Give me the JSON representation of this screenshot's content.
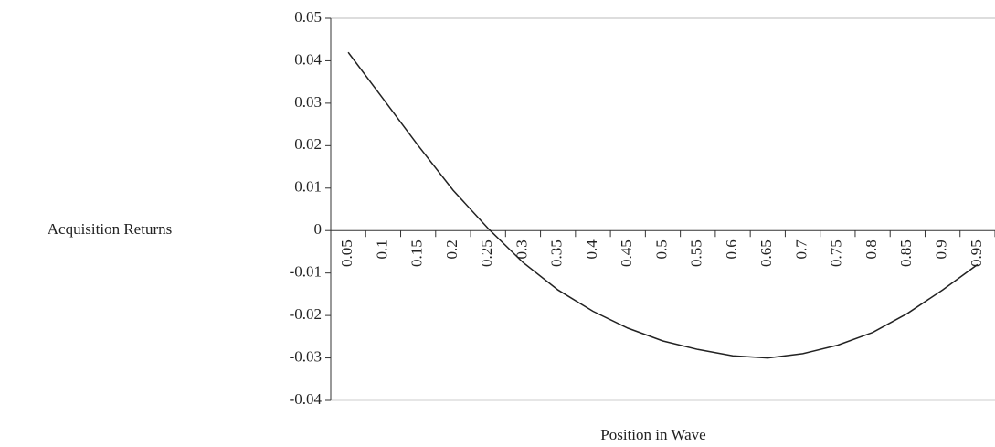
{
  "chart_data": {
    "type": "line",
    "y_label": "Acquisition Returns",
    "x_label": "Position in Wave",
    "categories": [
      "0.05",
      "0.1",
      "0.15",
      "0.2",
      "0.25",
      "0.3",
      "0.35",
      "0.4",
      "0.45",
      "0.5",
      "0.55",
      "0.6",
      "0.65",
      "0.7",
      "0.75",
      "0.8",
      "0.85",
      "0.9",
      "0.95"
    ],
    "values": [
      0.042,
      0.031,
      0.02,
      0.0095,
      0.0005,
      -0.0075,
      -0.014,
      -0.019,
      -0.023,
      -0.026,
      -0.028,
      -0.0295,
      -0.03,
      -0.029,
      -0.027,
      -0.024,
      -0.0195,
      -0.014,
      -0.008
    ],
    "color": "#222222",
    "ylim": [
      -0.04,
      0.05
    ],
    "yticks": [
      -0.04,
      -0.03,
      -0.02,
      -0.01,
      0,
      0.01,
      0.02,
      0.03,
      0.04,
      0.05
    ]
  }
}
